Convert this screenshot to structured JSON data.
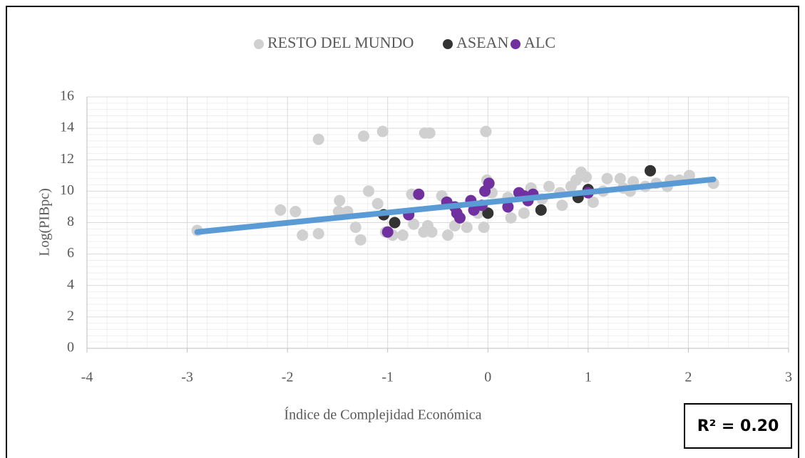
{
  "chart_data": {
    "type": "scatter",
    "xlabel": "Índice de Complejidad Económica",
    "ylabel": "Log(PIBpc)",
    "xlim": [
      -4,
      3
    ],
    "xticks": [
      -4,
      -3,
      -2,
      -1,
      0,
      1,
      2,
      3
    ],
    "ylim": [
      0,
      16
    ],
    "yticks": [
      0,
      2,
      4,
      6,
      8,
      10,
      12,
      14,
      16
    ],
    "grid": true,
    "legend": "top",
    "series": [
      {
        "name": "RESTO DEL MUNDO",
        "color": "#d0d0d0",
        "x": [
          -2.9,
          -2.07,
          -1.92,
          -1.85,
          -1.69,
          -1.69,
          -1.48,
          -1.49,
          -1.4,
          -1.32,
          -1.27,
          -1.24,
          -1.19,
          -1.1,
          -1.05,
          -1.02,
          -0.95,
          -0.85,
          -0.76,
          -0.74,
          -0.64,
          -0.6,
          -0.56,
          -0.63,
          -0.58,
          -0.46,
          -0.4,
          -0.33,
          -0.28,
          -0.21,
          -0.1,
          -0.04,
          -0.02,
          -0.01,
          0.04,
          0.23,
          0.2,
          0.36,
          0.43,
          0.54,
          0.61,
          0.72,
          0.74,
          0.83,
          0.88,
          0.93,
          0.98,
          1.05,
          1.15,
          1.19,
          1.32,
          1.35,
          1.45,
          1.42,
          1.57,
          1.68,
          1.79,
          1.82,
          1.91,
          2.01,
          2.25
        ],
        "values": [
          7.5,
          8.8,
          8.7,
          7.2,
          7.3,
          13.3,
          9.4,
          8.7,
          8.7,
          7.7,
          6.9,
          13.5,
          10.0,
          9.2,
          13.8,
          7.4,
          7.2,
          7.2,
          9.8,
          7.9,
          7.4,
          7.8,
          7.4,
          13.7,
          13.7,
          9.7,
          7.2,
          7.8,
          8.3,
          7.7,
          8.6,
          7.7,
          13.8,
          10.7,
          9.9,
          8.3,
          9.6,
          8.6,
          10.2,
          9.5,
          10.3,
          9.9,
          9.1,
          10.3,
          10.7,
          11.2,
          10.9,
          9.3,
          10.0,
          10.8,
          10.8,
          10.2,
          10.6,
          10.0,
          10.3,
          10.5,
          10.3,
          10.7,
          10.7,
          11.0,
          10.5
        ]
      },
      {
        "name": "ASEAN",
        "color": "#333333",
        "x": [
          -1.04,
          -0.93,
          0.0,
          0.53,
          0.9,
          1.0,
          1.62
        ],
        "values": [
          8.5,
          8.0,
          8.6,
          8.8,
          9.6,
          10.1,
          11.3
        ]
      },
      {
        "name": "ALC",
        "color": "#7030a0",
        "x": [
          -1.0,
          -0.79,
          -0.69,
          -0.41,
          -0.33,
          -0.31,
          -0.28,
          -0.17,
          -0.14,
          -0.06,
          -0.03,
          0.01,
          0.2,
          0.31,
          0.36,
          0.4,
          0.45,
          1.0
        ],
        "values": [
          7.4,
          8.5,
          9.8,
          9.3,
          9.0,
          8.6,
          8.3,
          9.4,
          8.8,
          9.1,
          10.0,
          10.5,
          9.0,
          9.9,
          9.7,
          9.4,
          9.8,
          9.9
        ]
      }
    ],
    "trendline": {
      "color": "#5b9bd5",
      "x": [
        -2.9,
        2.25
      ],
      "values": [
        7.4,
        10.75
      ]
    },
    "annotation": "R² = 0.20"
  }
}
